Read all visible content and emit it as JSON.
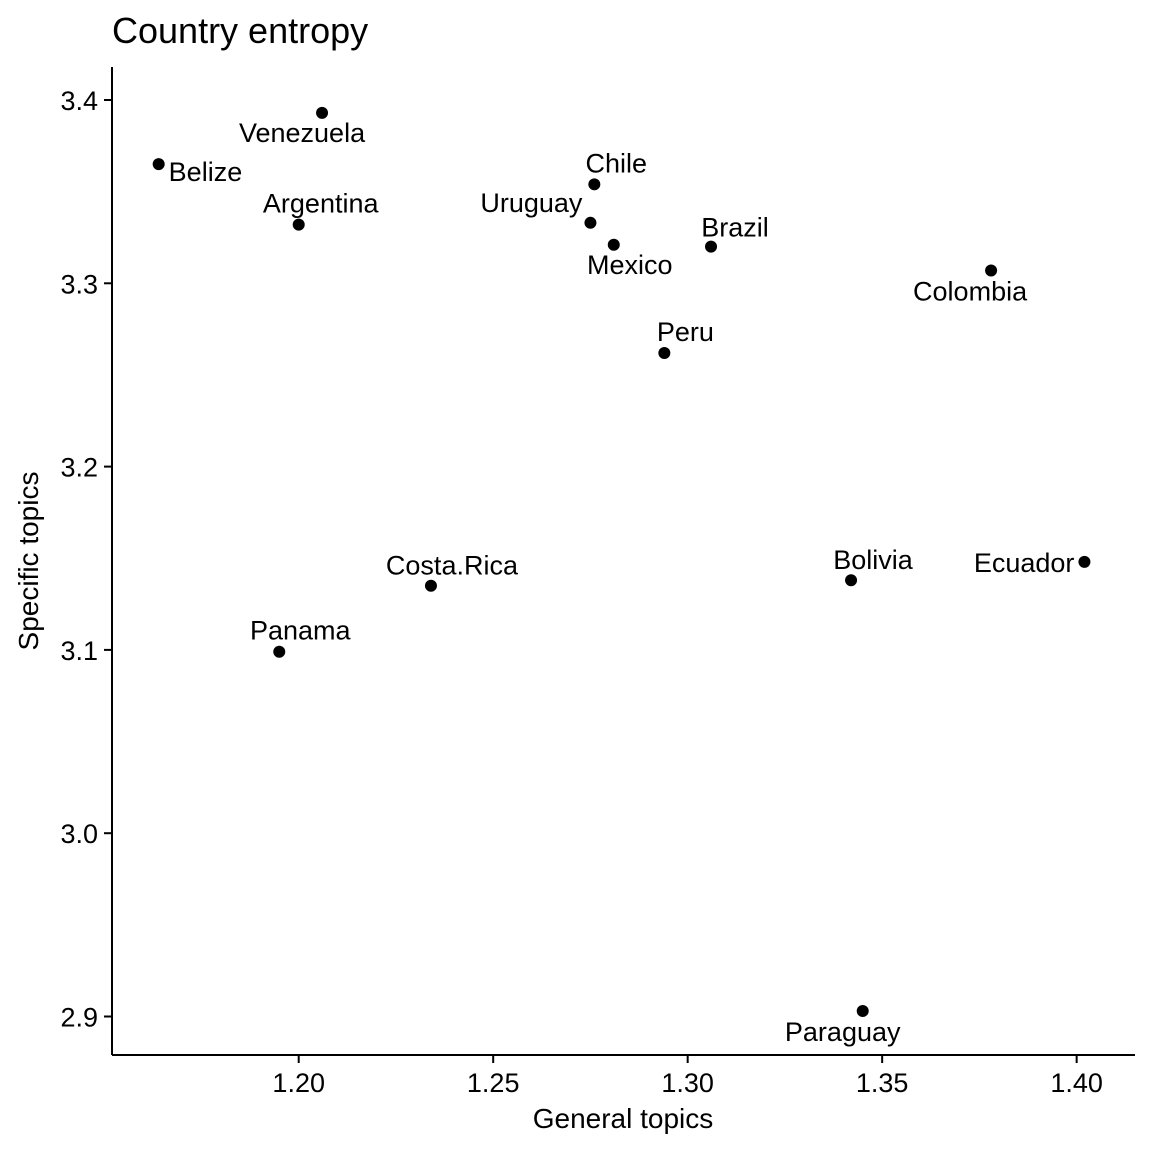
{
  "chart_data": {
    "type": "scatter",
    "title": "Country entropy",
    "xlabel": "General topics",
    "ylabel": "Specific topics",
    "xlim": [
      1.152,
      1.415
    ],
    "ylim": [
      2.879,
      3.418
    ],
    "xticks": [
      "1.20",
      "1.25",
      "1.30",
      "1.35",
      "1.40"
    ],
    "yticks": [
      "2.9",
      "3.0",
      "3.1",
      "3.2",
      "3.3",
      "3.4"
    ],
    "grid": false,
    "points": [
      {
        "label": "Venezuela",
        "x": 1.206,
        "y": 3.393
      },
      {
        "label": "Belize",
        "x": 1.164,
        "y": 3.365
      },
      {
        "label": "Argentina",
        "x": 1.2,
        "y": 3.332
      },
      {
        "label": "Chile",
        "x": 1.276,
        "y": 3.354
      },
      {
        "label": "Uruguay",
        "x": 1.275,
        "y": 3.333
      },
      {
        "label": "Mexico",
        "x": 1.281,
        "y": 3.321
      },
      {
        "label": "Brazil",
        "x": 1.306,
        "y": 3.32
      },
      {
        "label": "Colombia",
        "x": 1.378,
        "y": 3.307
      },
      {
        "label": "Peru",
        "x": 1.294,
        "y": 3.262
      },
      {
        "label": "Costa.Rica",
        "x": 1.234,
        "y": 3.135
      },
      {
        "label": "Panama",
        "x": 1.195,
        "y": 3.099
      },
      {
        "label": "Bolivia",
        "x": 1.342,
        "y": 3.138
      },
      {
        "label": "Ecuador",
        "x": 1.402,
        "y": 3.148
      },
      {
        "label": "Paraguay",
        "x": 1.345,
        "y": 2.903
      }
    ]
  }
}
